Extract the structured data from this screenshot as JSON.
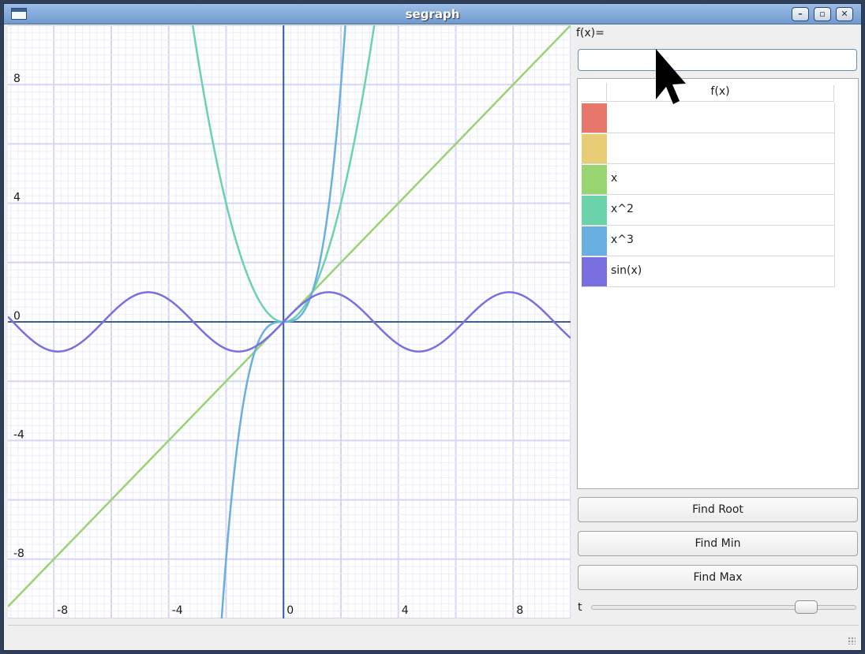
{
  "window": {
    "title": "segraph"
  },
  "titlebar_buttons": [
    {
      "name": "minimize",
      "glyph": "–"
    },
    {
      "name": "maximize",
      "glyph": "▫"
    },
    {
      "name": "close",
      "glyph": "✕"
    }
  ],
  "sidebar": {
    "fx_label": "f(x)=",
    "fx_input_value": "",
    "table_header": "f(x)",
    "functions": [
      {
        "color": "#e8776b",
        "expr": ""
      },
      {
        "color": "#e9cc76",
        "expr": ""
      },
      {
        "color": "#97d572",
        "expr": "x"
      },
      {
        "color": "#6bd3ac",
        "expr": "x^2"
      },
      {
        "color": "#6aafe2",
        "expr": "x^3"
      },
      {
        "color": "#7a6fe0",
        "expr": "sin(x)"
      }
    ],
    "buttons": {
      "find_root": "Find Root",
      "find_min": "Find Min",
      "find_max": "Find Max"
    },
    "t_label": "t",
    "t_slider_fraction": 0.84
  },
  "chart_data": {
    "type": "line",
    "xlim": [
      -9.6,
      10
    ],
    "ylim": [
      -10,
      10
    ],
    "x_ticks": [
      -8,
      -4,
      0,
      4,
      8
    ],
    "y_ticks": [
      8,
      4,
      0,
      -4,
      -8
    ],
    "grid": true,
    "series": [
      {
        "expr": "x",
        "color": "#97d572"
      },
      {
        "expr": "x^2",
        "color": "#6bd3ac"
      },
      {
        "expr": "x^3",
        "color": "#6aafe2"
      },
      {
        "expr": "sin(x)",
        "color": "#7a6fe0"
      }
    ]
  }
}
